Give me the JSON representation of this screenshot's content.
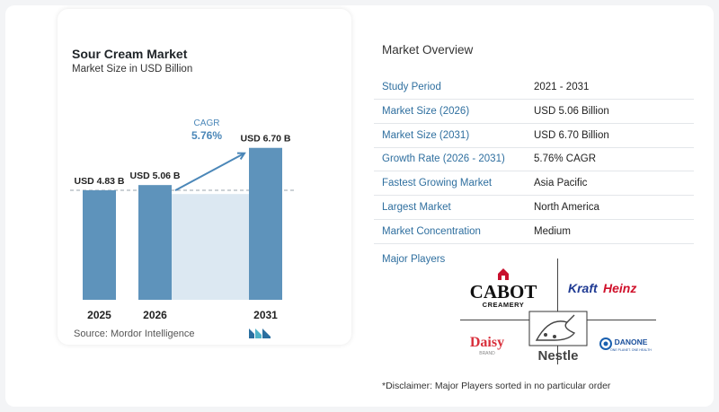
{
  "chart_data": {
    "type": "bar",
    "title": "Sour Cream Market",
    "subtitle": "Market Size in USD Billion",
    "categories": [
      "2025",
      "2026",
      "2031"
    ],
    "values": [
      4.83,
      5.06,
      6.7
    ],
    "value_labels": [
      "USD 4.83 B",
      "USD 5.06 B",
      "USD 6.70 B"
    ],
    "ylim": [
      0,
      7.6
    ],
    "annotation": {
      "label": "CAGR",
      "value": "5.76%"
    },
    "colors": {
      "bar": "#5e93bb",
      "area": "#dce8f2",
      "line": "#4b87b8",
      "annotation": "#4b87b8"
    }
  },
  "source": "Source:  Mordor Intelligence",
  "overview": {
    "title": "Market Overview",
    "rows": [
      {
        "key": "Study Period",
        "value": "2021 - 2031"
      },
      {
        "key": "Market Size (2026)",
        "value": "USD 5.06 Billion"
      },
      {
        "key": "Market Size (2031)",
        "value": "USD 6.70 Billion"
      },
      {
        "key": "Growth Rate (2026 - 2031)",
        "value": "5.76% CAGR"
      },
      {
        "key": "Fastest Growing Market",
        "value": "Asia Pacific"
      },
      {
        "key": "Largest Market",
        "value": "North America"
      },
      {
        "key": "Market Concentration",
        "value": "Medium"
      }
    ],
    "players_title": "Major Players",
    "players": [
      {
        "name": "CABOT",
        "sub": "CREAMERY"
      },
      {
        "name": "KraftHeinz"
      },
      {
        "name": "Daisy",
        "sub": "BRAND"
      },
      {
        "name": "Nestle"
      },
      {
        "name": "DANONE",
        "sub": "ONE PLANET. ONE HEALTH"
      }
    ],
    "disclaimer": "*Disclaimer: Major Players sorted in no particular order"
  }
}
